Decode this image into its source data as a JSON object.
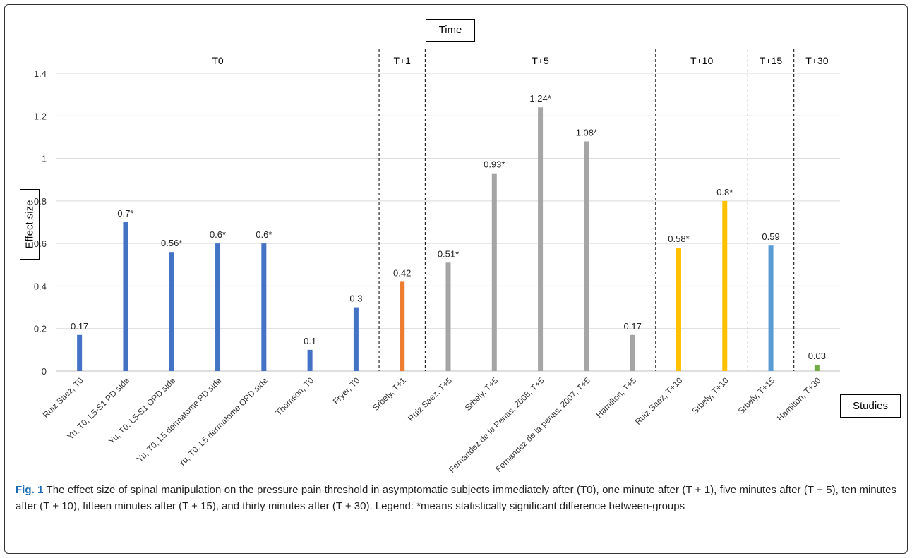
{
  "chart_data": {
    "type": "bar",
    "ylabel": "Effect size",
    "xlabel": "Studies",
    "ylim": [
      0,
      1.4
    ],
    "yticks": [
      "0",
      "0.2",
      "0.4",
      "0.6",
      "0.8",
      "1",
      "1.2",
      "1.4"
    ],
    "grid": true,
    "group_axis_title": "Time",
    "categories": [
      "Ruiz Saez, T0",
      "Yu, T0, L5-S1 PD side",
      "Yu, T0, L5-S1 OPD side",
      "Yu, T0, L5 dermatome PD side",
      "Yu, T0, L5 dermatome OPD side",
      "Thomson, T0",
      "Fryer, T0",
      "Srbely, T+1",
      "Ruiz Saez, T+5",
      "Srbely, T+5",
      "Fernandez de la Penas, 2008, T+5",
      "Fernandez de la penas, 2007, T+5",
      "Hamilton, T+5",
      "Ruiz Saez, T+10",
      "Srbely, T+10",
      "Srbely, T+15",
      "Hamilton, T+30"
    ],
    "values": [
      0.17,
      0.7,
      0.56,
      0.6,
      0.6,
      0.1,
      0.3,
      0.42,
      0.51,
      0.93,
      1.24,
      1.08,
      0.17,
      0.58,
      0.8,
      0.59,
      0.03
    ],
    "data_labels": [
      "0.17",
      "0.7*",
      "0.56*",
      "0.6*",
      "0.6*",
      "0.1",
      "0.3",
      "0.42",
      "0.51*",
      "0.93*",
      "1.24*",
      "1.08*",
      "0.17",
      "0.58*",
      "0.8*",
      "0.59",
      "0.03"
    ],
    "groups": [
      {
        "label": "T0",
        "count": 7,
        "color": "#4472c4"
      },
      {
        "label": "T+1",
        "count": 1,
        "color": "#ed7d31"
      },
      {
        "label": "T+5",
        "count": 5,
        "color": "#a5a5a5"
      },
      {
        "label": "T+10",
        "count": 2,
        "color": "#ffc000"
      },
      {
        "label": "T+15",
        "count": 1,
        "color": "#5b9bd5"
      },
      {
        "label": "T+30",
        "count": 1,
        "color": "#70ad47"
      }
    ]
  },
  "caption": {
    "label": "Fig. 1",
    "text": " The effect size of spinal manipulation on the pressure pain threshold in asymptomatic subjects immediately after (T0), one minute after (T + 1), five minutes after (T + 5), ten minutes after (T + 10), fifteen minutes after (T + 15), and thirty minutes after (T + 30). Legend: *means statistically significant difference between-groups"
  }
}
